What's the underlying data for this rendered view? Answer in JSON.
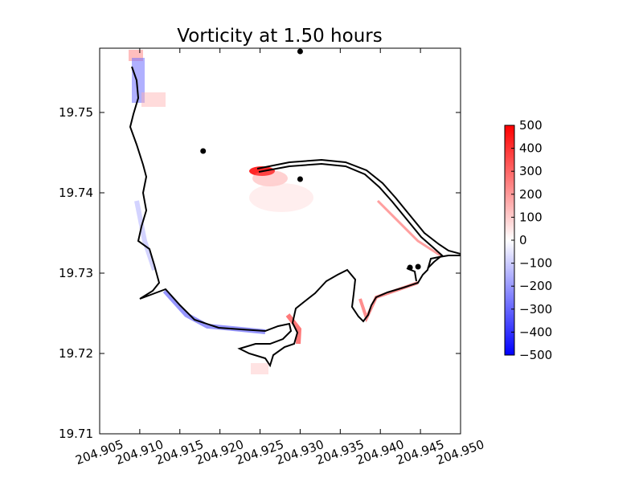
{
  "chart_data": {
    "type": "heatmap",
    "title": "Vorticity at 1.50 hours",
    "xlabel": "",
    "ylabel": "",
    "xlim": [
      204.905,
      204.95
    ],
    "ylim": [
      19.71,
      19.758
    ],
    "x_ticks": [
      204.905,
      204.91,
      204.915,
      204.92,
      204.925,
      204.93,
      204.935,
      204.94,
      204.945,
      204.95
    ],
    "x_tick_labels": [
      "204.905",
      "204.910",
      "204.915",
      "204.920",
      "204.925",
      "204.930",
      "204.935",
      "204.940",
      "204.945",
      "204.950"
    ],
    "y_ticks": [
      19.71,
      19.72,
      19.73,
      19.74,
      19.75
    ],
    "y_tick_labels": [
      "19.71",
      "19.72",
      "19.73",
      "19.74",
      "19.75"
    ],
    "colorbar": {
      "range": [
        -500,
        500
      ],
      "ticks": [
        500,
        400,
        300,
        200,
        100,
        0,
        -100,
        -200,
        -300,
        -400,
        -500
      ],
      "tick_labels": [
        "500",
        "400",
        "300",
        "200",
        "100",
        "0",
        "−100",
        "−200",
        "−300",
        "−400",
        "−500"
      ],
      "colormap": "bwr",
      "color_low": "#0000ff",
      "color_mid": "#ffffff",
      "color_high": "#ff0000"
    },
    "shoreline_color": "#000000",
    "gauge_points": [
      {
        "x": 204.93,
        "y": 19.7576
      },
      {
        "x": 204.9179,
        "y": 19.7452
      },
      {
        "x": 204.93,
        "y": 19.7417
      },
      {
        "x": 204.9437,
        "y": 19.7307
      },
      {
        "x": 204.9447,
        "y": 19.7308
      }
    ]
  }
}
